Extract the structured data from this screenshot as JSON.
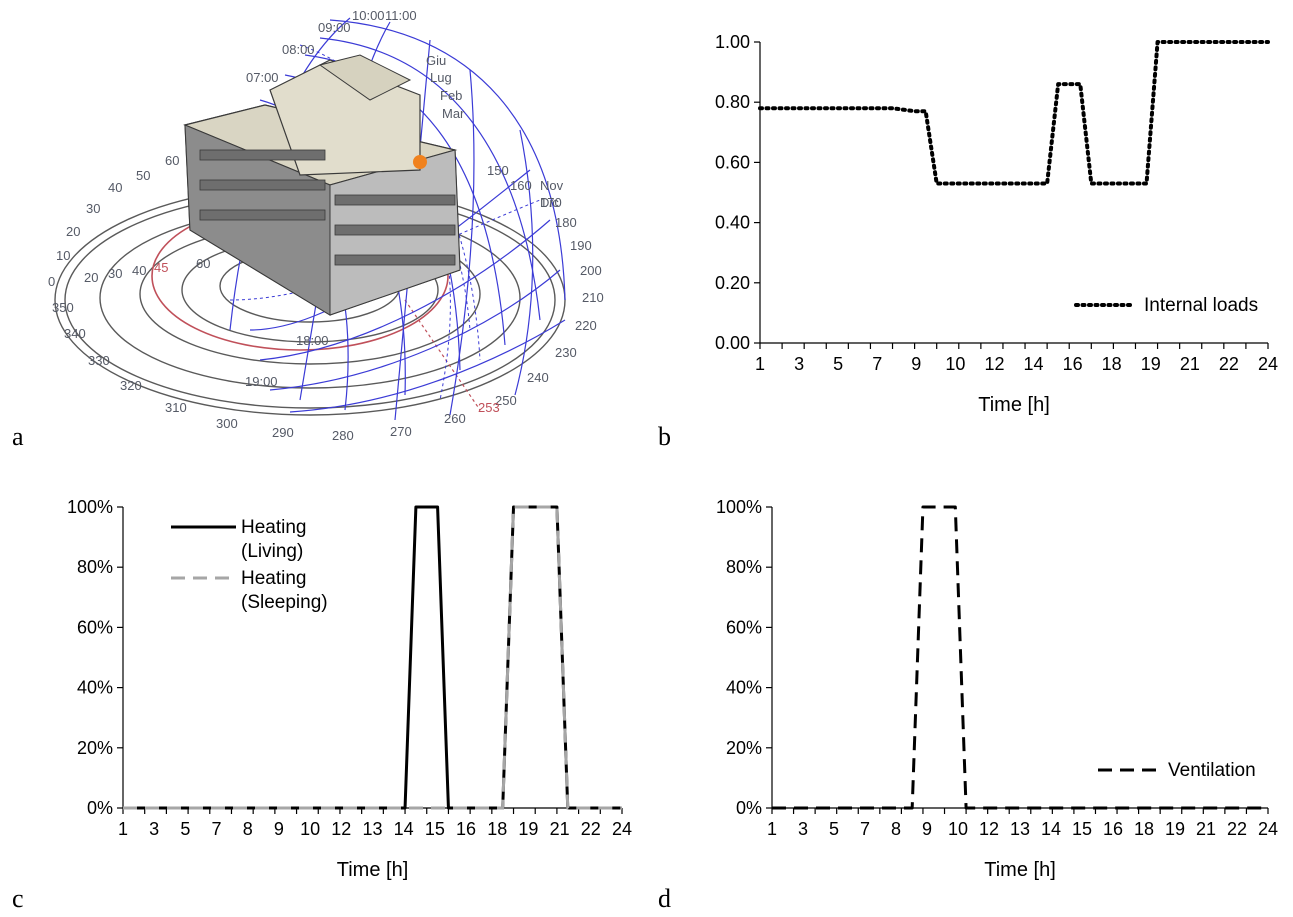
{
  "panels": {
    "a": {
      "letter": "a"
    },
    "b": {
      "letter": "b"
    },
    "c": {
      "letter": "c"
    },
    "d": {
      "letter": "d"
    }
  },
  "sun_path": {
    "radial_labels": [
      "0",
      "10",
      "20",
      "30",
      "40",
      "50",
      "60",
      "45",
      "20",
      "30",
      "40",
      "60"
    ],
    "azimuth_labels": [
      "150",
      "160",
      "170",
      "180",
      "190",
      "200",
      "210",
      "220",
      "230",
      "240",
      "250",
      "253",
      "260",
      "270",
      "280",
      "290",
      "300",
      "310",
      "320",
      "330",
      "340",
      "350"
    ],
    "hour_labels": [
      "10:00",
      "11:00",
      "09:00",
      "08:00",
      "07:00",
      "18:00",
      "19:00"
    ],
    "month_labels": [
      "Nov",
      "Dic",
      "Giu",
      "Lug",
      "Feb",
      "Mar"
    ]
  },
  "chart_data": [
    {
      "id": "b",
      "type": "line",
      "x": [
        1,
        2,
        3,
        4,
        5,
        6,
        7,
        8,
        8.5,
        9,
        10,
        11,
        12,
        13,
        14,
        14.5,
        15,
        15.5,
        16,
        17,
        18,
        18.5,
        19,
        20,
        21,
        22,
        23,
        24
      ],
      "series": [
        {
          "name": "Internal loads",
          "style": "dotted",
          "color": "#000000",
          "values": [
            0.78,
            0.78,
            0.78,
            0.78,
            0.78,
            0.78,
            0.78,
            0.77,
            0.77,
            0.53,
            0.53,
            0.53,
            0.53,
            0.53,
            0.53,
            0.86,
            0.86,
            0.86,
            0.53,
            0.53,
            0.53,
            0.53,
            1.0,
            1.0,
            1.0,
            1.0,
            1.0,
            1.0
          ]
        }
      ],
      "xticks": [
        "1",
        "3",
        "5",
        "7",
        "9",
        "10",
        "12",
        "14",
        "16",
        "18",
        "19",
        "21",
        "22",
        "24"
      ],
      "yticks": [
        "0.00",
        "0.20",
        "0.40",
        "0.60",
        "0.80",
        "1.00"
      ],
      "ylim": [
        0,
        1
      ],
      "xlabel": "Time [h]",
      "legend_position": "bottom-right"
    },
    {
      "id": "c",
      "type": "line",
      "x": [
        1,
        2,
        3,
        4,
        5,
        6,
        7,
        8,
        9,
        10,
        11,
        12,
        13,
        14,
        14.5,
        15,
        15.5,
        16,
        17,
        18,
        18.5,
        19,
        20,
        21,
        21.5,
        22,
        23,
        24
      ],
      "series": [
        {
          "name": "Heating\n(Living)",
          "style": "solid",
          "color": "#000000",
          "values": [
            0,
            0,
            0,
            0,
            0,
            0,
            0,
            0,
            0,
            0,
            0,
            0,
            0,
            0,
            1,
            1,
            1,
            0,
            0,
            0,
            0,
            1,
            1,
            1,
            0,
            0,
            0,
            0
          ]
        },
        {
          "name": "Heating\n(Sleeping)",
          "style": "dashed",
          "color": "#a6a6a6",
          "values": [
            0,
            0,
            0,
            0,
            0,
            0,
            0,
            0,
            0,
            0,
            0,
            0,
            0,
            0,
            0,
            0,
            0,
            0,
            0,
            0,
            0,
            1,
            1,
            1,
            0,
            0,
            0,
            0
          ]
        }
      ],
      "xticks": [
        "1",
        "3",
        "5",
        "7",
        "8",
        "9",
        "10",
        "12",
        "13",
        "14",
        "15",
        "16",
        "18",
        "19",
        "21",
        "22",
        "24"
      ],
      "yticks": [
        "0%",
        "20%",
        "40%",
        "60%",
        "80%",
        "100%"
      ],
      "ylim": [
        0,
        1
      ],
      "xlabel": "Time [h]",
      "legend_position": "top-left"
    },
    {
      "id": "d",
      "type": "line",
      "x": [
        1,
        2,
        3,
        4,
        5,
        6,
        7,
        7.5,
        8,
        9,
        9.5,
        10,
        11,
        12,
        13,
        14,
        15,
        16,
        17,
        18,
        19,
        20,
        21,
        22,
        23,
        24
      ],
      "series": [
        {
          "name": "Ventilation",
          "style": "dashed",
          "color": "#000000",
          "values": [
            0,
            0,
            0,
            0,
            0,
            0,
            0,
            0,
            1,
            1,
            1,
            0,
            0,
            0,
            0,
            0,
            0,
            0,
            0,
            0,
            0,
            0,
            0,
            0,
            0,
            0
          ]
        }
      ],
      "xticks": [
        "1",
        "3",
        "5",
        "7",
        "8",
        "9",
        "10",
        "12",
        "13",
        "14",
        "15",
        "16",
        "18",
        "19",
        "21",
        "22",
        "24"
      ],
      "yticks": [
        "0%",
        "20%",
        "40%",
        "60%",
        "80%",
        "100%"
      ],
      "ylim": [
        0,
        1
      ],
      "xlabel": "Time [h]",
      "legend_position": "bottom-right"
    }
  ]
}
